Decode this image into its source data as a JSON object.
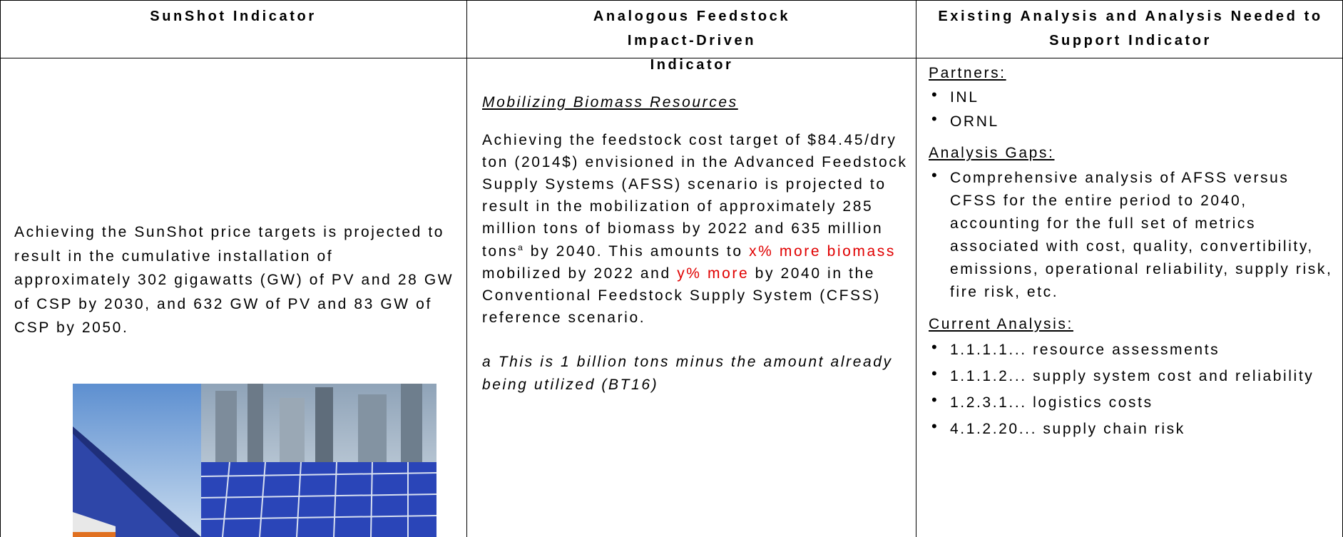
{
  "table": {
    "headers": [
      "SunShot Indicator",
      "Analogous Feedstock Impact-Driven Indicator",
      "Existing Analysis and Analysis Needed to Support Indicator"
    ],
    "sunshot": {
      "text": "Achieving the SunShot price targets is projected to result in the cumulative installation of approximately 302 gigawatts (GW) of PV and 28 GW of CSP by 2030, and 632 GW of PV and 83 GW of CSP by 2050."
    },
    "feedstock": {
      "heading": "Mobilizing Biomass Resources",
      "body": [
        "Achieving the feedstock cost target of $84.45/dry ton (2014$) envisioned in the Advanced Feedstock Supply Systems (AFSS) scenario is projected to result in the mobilization of approximately 285 million tons of biomass by 2022 and 635 million tons",
        "a",
        " by 2040. This amounts to ",
        "x% more biomass",
        " mobilized by 2022 and ",
        "y% more",
        " by 2040 in the Conventional Feedstock Supply System (CFSS) reference scenario."
      ],
      "footnote": "a This is 1 billion tons minus the amount already being utilized (BT16)"
    },
    "analysis": [
      {
        "title": "Partners:",
        "items": [
          "INL",
          "ORNL"
        ]
      },
      {
        "title": "Analysis Gaps:",
        "items": [
          "Comprehensive analysis of AFSS versus CFSS for the entire period to 2040, accounting for the full set of metrics associated with cost, quality, convertibility, emissions, operational reliability, supply risk, fire risk, etc."
        ]
      },
      {
        "title": "Current Analysis:",
        "items": [
          "1.1.1.1... resource assessments",
          "1.1.1.2... supply system cost and reliability",
          "1.2.3.1... logistics costs",
          "4.1.2.20... supply chain risk"
        ]
      }
    ]
  }
}
